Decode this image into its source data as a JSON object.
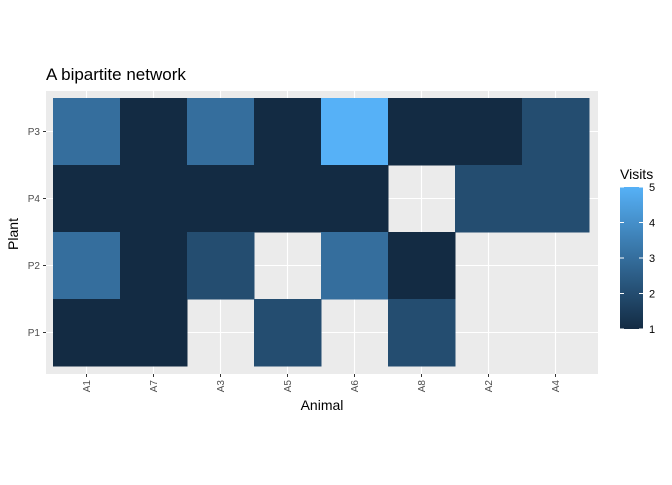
{
  "chart_data": {
    "type": "heatmap",
    "title": "A bipartite network",
    "xlabel": "Animal",
    "ylabel": "Plant",
    "x_categories": [
      "A1",
      "A7",
      "A3",
      "A5",
      "A6",
      "A8",
      "A2",
      "A4"
    ],
    "y_categories": [
      "P1",
      "P2",
      "P4",
      "P3"
    ],
    "cells": [
      {
        "x": "A1",
        "y": "P3",
        "value": 3
      },
      {
        "x": "A7",
        "y": "P3",
        "value": 1
      },
      {
        "x": "A3",
        "y": "P3",
        "value": 3
      },
      {
        "x": "A5",
        "y": "P3",
        "value": 1
      },
      {
        "x": "A6",
        "y": "P3",
        "value": 5
      },
      {
        "x": "A8",
        "y": "P3",
        "value": 1
      },
      {
        "x": "A2",
        "y": "P3",
        "value": 1
      },
      {
        "x": "A4",
        "y": "P3",
        "value": 2
      },
      {
        "x": "A1",
        "y": "P4",
        "value": 1
      },
      {
        "x": "A7",
        "y": "P4",
        "value": 1
      },
      {
        "x": "A3",
        "y": "P4",
        "value": 1
      },
      {
        "x": "A5",
        "y": "P4",
        "value": 1
      },
      {
        "x": "A6",
        "y": "P4",
        "value": 1
      },
      {
        "x": "A2",
        "y": "P4",
        "value": 2
      },
      {
        "x": "A4",
        "y": "P4",
        "value": 2
      },
      {
        "x": "A1",
        "y": "P2",
        "value": 3
      },
      {
        "x": "A7",
        "y": "P2",
        "value": 1
      },
      {
        "x": "A3",
        "y": "P2",
        "value": 2
      },
      {
        "x": "A6",
        "y": "P2",
        "value": 3
      },
      {
        "x": "A8",
        "y": "P2",
        "value": 1
      },
      {
        "x": "A1",
        "y": "P1",
        "value": 1
      },
      {
        "x": "A7",
        "y": "P1",
        "value": 1
      },
      {
        "x": "A5",
        "y": "P1",
        "value": 2
      },
      {
        "x": "A8",
        "y": "P1",
        "value": 2
      }
    ],
    "legend": {
      "title": "Visits",
      "ticks": [
        1,
        2,
        3,
        4,
        5
      ],
      "low_color": "#132B43",
      "high_color": "#56B1F7"
    },
    "colors": {
      "panel_background": "#EBEBEB",
      "grid": "#FFFFFF",
      "tick_text": "#4D4D4D"
    },
    "grid": true,
    "legend_position": "right"
  }
}
